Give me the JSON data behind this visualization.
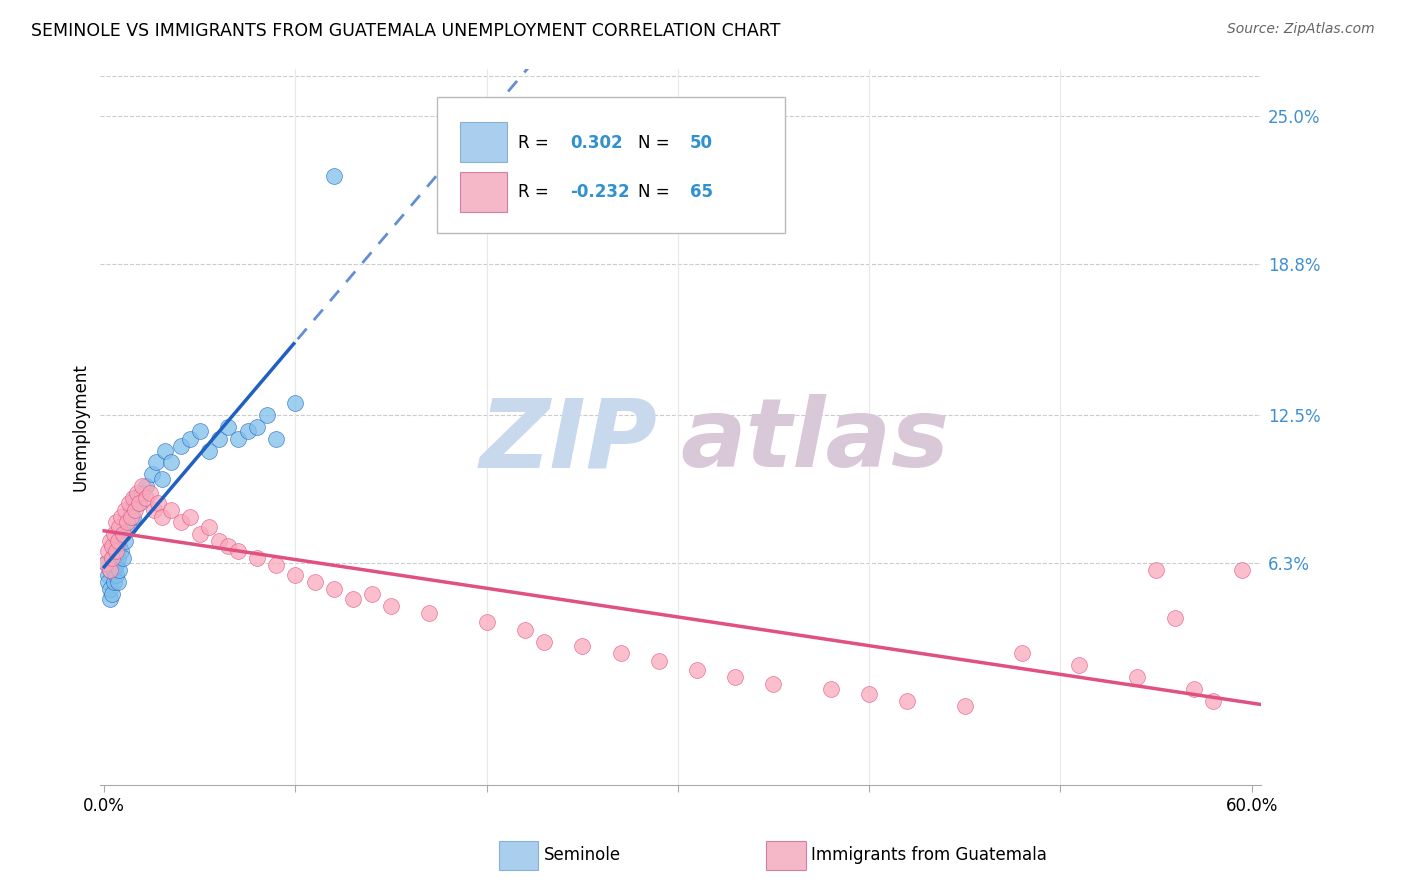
{
  "title": "SEMINOLE VS IMMIGRANTS FROM GUATEMALA UNEMPLOYMENT CORRELATION CHART",
  "source": "Source: ZipAtlas.com",
  "ylabel": "Unemployment",
  "ytick_labels": [
    "25.0%",
    "18.8%",
    "12.5%",
    "6.3%"
  ],
  "ytick_values": [
    0.25,
    0.188,
    0.125,
    0.063
  ],
  "xmin": -0.002,
  "xmax": 0.605,
  "ymin": -0.03,
  "ymax": 0.27,
  "seminole_color": "#7fbfea",
  "guatemala_color": "#f9a8bb",
  "seminole_line_color": "#2060c0",
  "guatemala_line_color": "#e05080",
  "legend_box_color_1": "#aacfee",
  "legend_box_color_2": "#f4b8c8",
  "R1": 0.302,
  "N1": 50,
  "R2": -0.232,
  "N2": 65,
  "seminole_x": [
    0.001,
    0.002,
    0.002,
    0.003,
    0.003,
    0.003,
    0.004,
    0.004,
    0.005,
    0.005,
    0.005,
    0.005,
    0.006,
    0.006,
    0.006,
    0.007,
    0.007,
    0.007,
    0.008,
    0.008,
    0.009,
    0.01,
    0.01,
    0.011,
    0.012,
    0.013,
    0.014,
    0.015,
    0.016,
    0.018,
    0.02,
    0.022,
    0.025,
    0.027,
    0.03,
    0.032,
    0.035,
    0.04,
    0.045,
    0.05,
    0.055,
    0.06,
    0.065,
    0.07,
    0.075,
    0.08,
    0.085,
    0.09,
    0.1,
    0.12
  ],
  "seminole_y": [
    0.063,
    0.058,
    0.055,
    0.048,
    0.052,
    0.06,
    0.05,
    0.065,
    0.055,
    0.06,
    0.065,
    0.07,
    0.058,
    0.062,
    0.068,
    0.055,
    0.065,
    0.072,
    0.06,
    0.07,
    0.068,
    0.065,
    0.075,
    0.072,
    0.08,
    0.078,
    0.085,
    0.082,
    0.09,
    0.088,
    0.092,
    0.095,
    0.1,
    0.105,
    0.098,
    0.11,
    0.105,
    0.112,
    0.115,
    0.118,
    0.11,
    0.115,
    0.12,
    0.115,
    0.118,
    0.12,
    0.125,
    0.115,
    0.13,
    0.225
  ],
  "guatemala_x": [
    0.001,
    0.002,
    0.003,
    0.003,
    0.004,
    0.004,
    0.005,
    0.006,
    0.006,
    0.007,
    0.008,
    0.009,
    0.01,
    0.011,
    0.012,
    0.013,
    0.014,
    0.015,
    0.016,
    0.017,
    0.018,
    0.02,
    0.022,
    0.024,
    0.026,
    0.028,
    0.03,
    0.035,
    0.04,
    0.045,
    0.05,
    0.055,
    0.06,
    0.065,
    0.07,
    0.08,
    0.09,
    0.1,
    0.11,
    0.12,
    0.13,
    0.14,
    0.15,
    0.17,
    0.2,
    0.22,
    0.23,
    0.25,
    0.27,
    0.29,
    0.31,
    0.33,
    0.35,
    0.38,
    0.4,
    0.42,
    0.45,
    0.48,
    0.51,
    0.54,
    0.55,
    0.56,
    0.57,
    0.58,
    0.595
  ],
  "guatemala_y": [
    0.063,
    0.068,
    0.06,
    0.072,
    0.065,
    0.07,
    0.075,
    0.068,
    0.08,
    0.072,
    0.078,
    0.082,
    0.075,
    0.085,
    0.08,
    0.088,
    0.082,
    0.09,
    0.085,
    0.092,
    0.088,
    0.095,
    0.09,
    0.092,
    0.085,
    0.088,
    0.082,
    0.085,
    0.08,
    0.082,
    0.075,
    0.078,
    0.072,
    0.07,
    0.068,
    0.065,
    0.062,
    0.058,
    0.055,
    0.052,
    0.048,
    0.05,
    0.045,
    0.042,
    0.038,
    0.035,
    0.03,
    0.028,
    0.025,
    0.022,
    0.018,
    0.015,
    0.012,
    0.01,
    0.008,
    0.005,
    0.003,
    0.025,
    0.02,
    0.015,
    0.06,
    0.04,
    0.01,
    0.005,
    0.06
  ],
  "watermark_zip": "ZIP",
  "watermark_atlas": "atlas",
  "watermark_color": "#dce8f5"
}
